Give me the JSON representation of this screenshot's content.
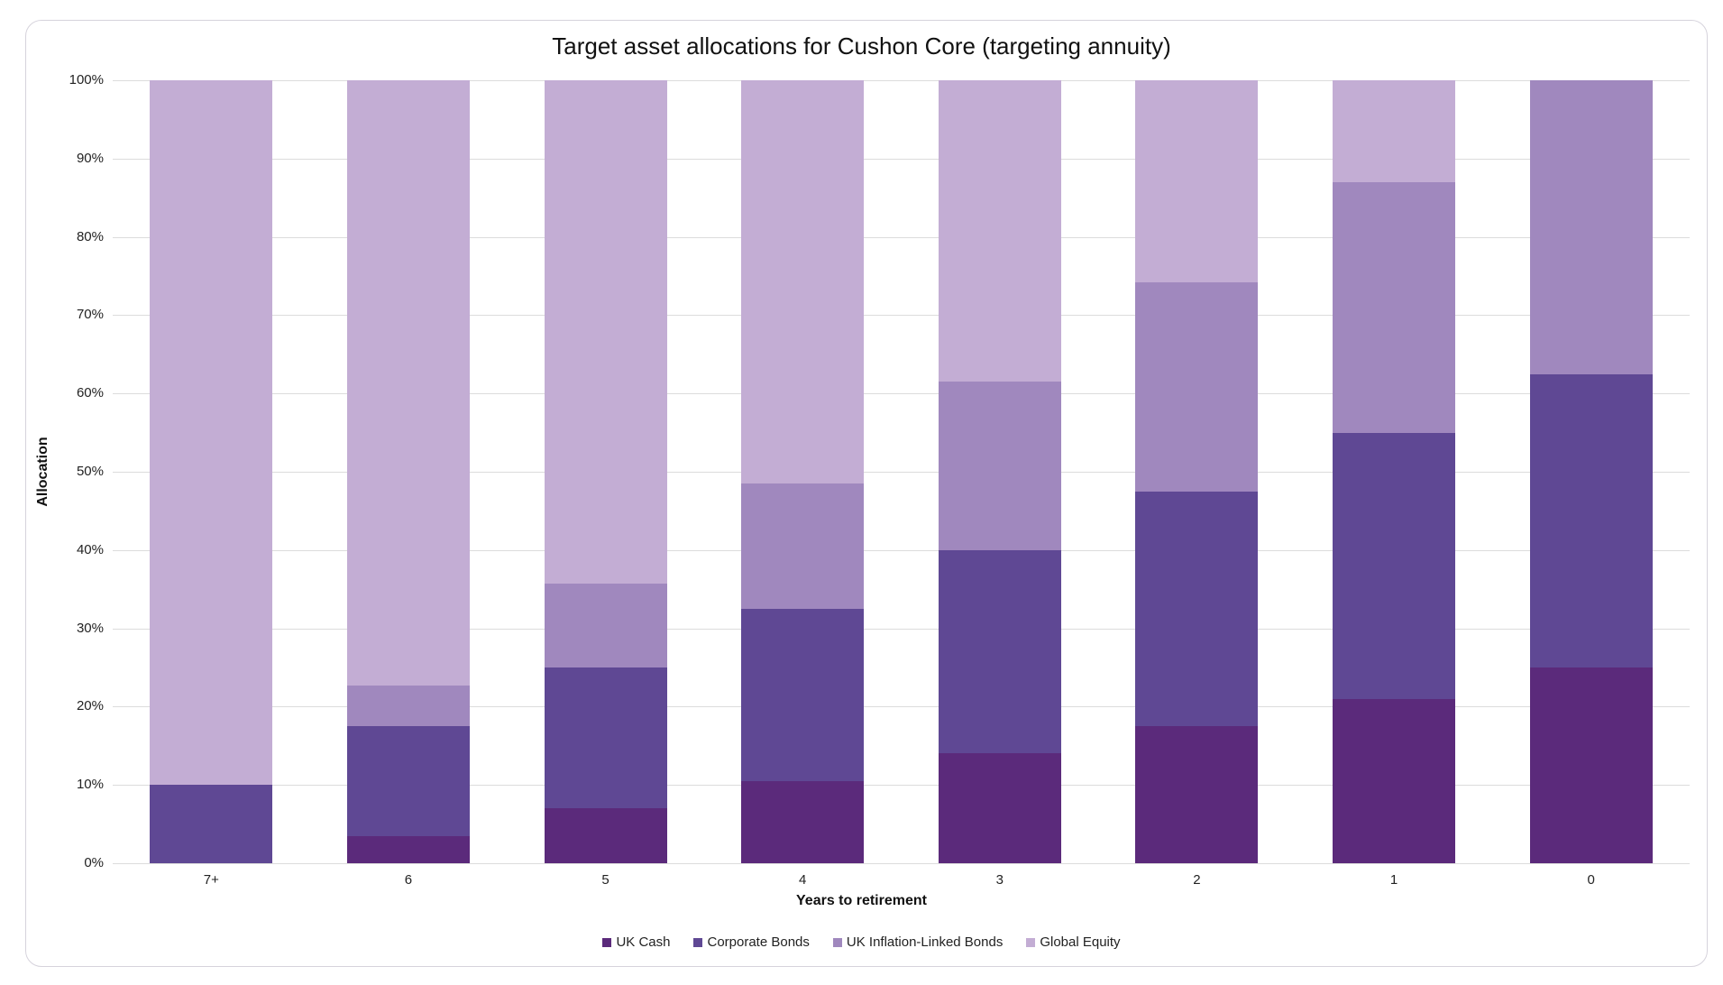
{
  "chart_data": {
    "type": "bar",
    "stacked": true,
    "title": "Target asset allocations for Cushon Core (targeting annuity)",
    "xlabel": "Years to retirement",
    "ylabel": "Allocation",
    "ylim": [
      0,
      100
    ],
    "y_ticks": [
      "0%",
      "10%",
      "20%",
      "30%",
      "40%",
      "50%",
      "60%",
      "70%",
      "80%",
      "90%",
      "100%"
    ],
    "grid": true,
    "legend_position": "bottom",
    "categories": [
      "7+",
      "6",
      "5",
      "4",
      "3",
      "2",
      "1",
      "0"
    ],
    "series": [
      {
        "name": "UK Cash",
        "color": "#5B2A7B",
        "values": [
          0,
          3.5,
          7,
          10.5,
          14,
          17.5,
          21,
          25
        ]
      },
      {
        "name": "Corporate Bonds",
        "color": "#5F4894",
        "values": [
          10,
          14,
          18,
          22,
          26,
          30,
          34,
          37.5
        ]
      },
      {
        "name": "UK Inflation-Linked Bonds",
        "color": "#A088BE",
        "values": [
          0,
          5.25,
          10.75,
          16,
          21.5,
          26.75,
          32,
          37.5
        ]
      },
      {
        "name": "Global Equity",
        "color": "#C3ADD4",
        "values": [
          90,
          77.25,
          64.25,
          51.5,
          38.5,
          25.75,
          13,
          0
        ]
      }
    ]
  }
}
